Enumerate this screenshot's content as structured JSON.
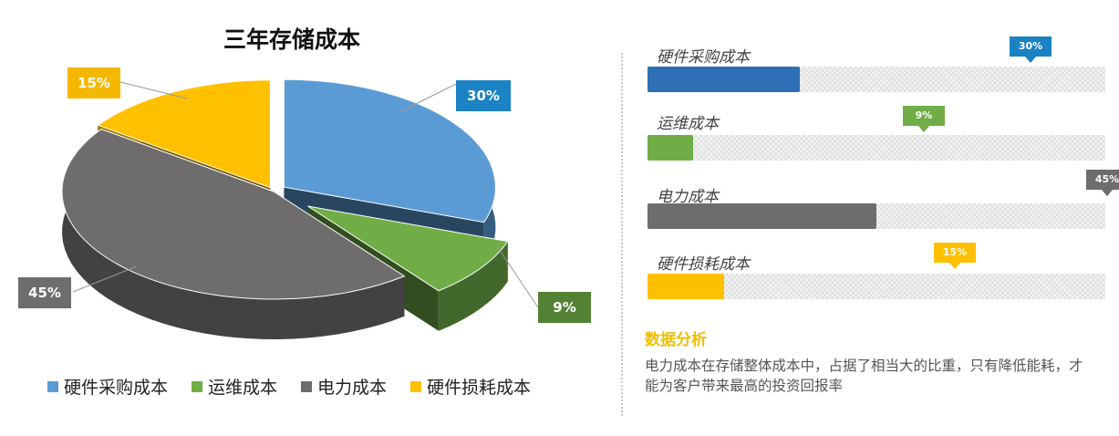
{
  "chart_data": [
    {
      "type": "pie",
      "title": "三年存储成本",
      "categories": [
        "硬件采购成本",
        "运维成本",
        "电力成本",
        "硬件损耗成本"
      ],
      "values": [
        30,
        9,
        45,
        15
      ],
      "labels": [
        "30%",
        "9%",
        "45%",
        "15%"
      ],
      "colors": [
        "#5b9bd5",
        "#70ad47",
        "#6f6c6d",
        "#ffc000"
      ],
      "legend": "bottom"
    },
    {
      "type": "bar",
      "orientation": "horizontal",
      "categories": [
        "硬件采购成本",
        "运维成本",
        "电力成本",
        "硬件损耗成本"
      ],
      "values": [
        30,
        9,
        45,
        15
      ],
      "labels": [
        "30%",
        "9%",
        "45%",
        "15%"
      ],
      "xlim": [
        0,
        100
      ],
      "colors": [
        "#2e6fb5",
        "#70ad47",
        "#6f6c6d",
        "#ffc000"
      ]
    }
  ],
  "callout_colors": [
    "#1b82c4",
    "#548235",
    "#6f6c6d",
    "#f5b800"
  ],
  "analysis": {
    "title": "数据分析",
    "text": "电力成本在存储整体成本中，占据了相当大的比重，只有降低能耗，才能为客户带来最高的投资回报率"
  }
}
